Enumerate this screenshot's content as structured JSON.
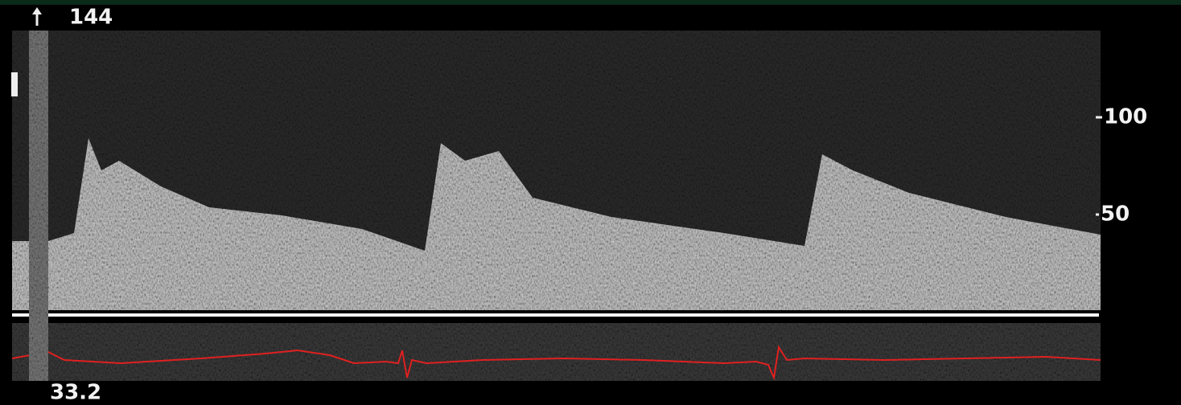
{
  "header": {
    "max_velocity": 144
  },
  "scale": {
    "ticks": [
      100,
      50
    ]
  },
  "footer": {
    "sweep": 33.2
  }
}
